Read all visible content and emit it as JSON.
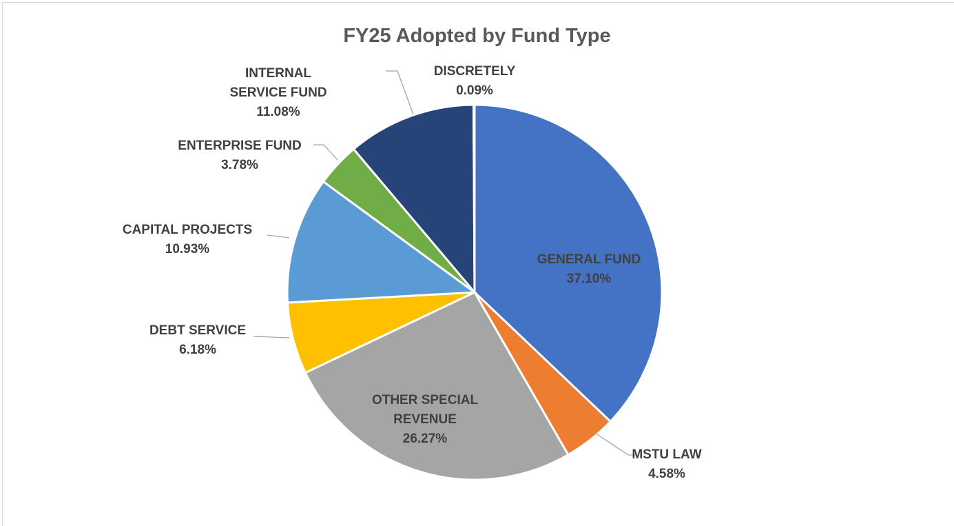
{
  "chart_data": {
    "type": "pie",
    "title": "FY25 Adopted by Fund Type",
    "categories": [
      "GENERAL FUND",
      "MSTU LAW",
      "OTHER SPECIAL REVENUE",
      "DEBT SERVICE",
      "CAPITAL PROJECTS",
      "ENTERPRISE FUND",
      "INTERNAL SERVICE FUND",
      "DISCRETELY"
    ],
    "values": [
      37.1,
      4.58,
      26.27,
      6.18,
      10.93,
      3.78,
      11.08,
      0.09
    ],
    "value_labels": [
      "37.10%",
      "4.58%",
      "26.27%",
      "6.18%",
      "10.93%",
      "3.78%",
      "11.08%",
      "0.09%"
    ],
    "colors": [
      "#4472c4",
      "#ed7d31",
      "#a5a5a5",
      "#ffc000",
      "#5b9bd5",
      "#70ad47",
      "#264478",
      "#9e480e"
    ]
  }
}
